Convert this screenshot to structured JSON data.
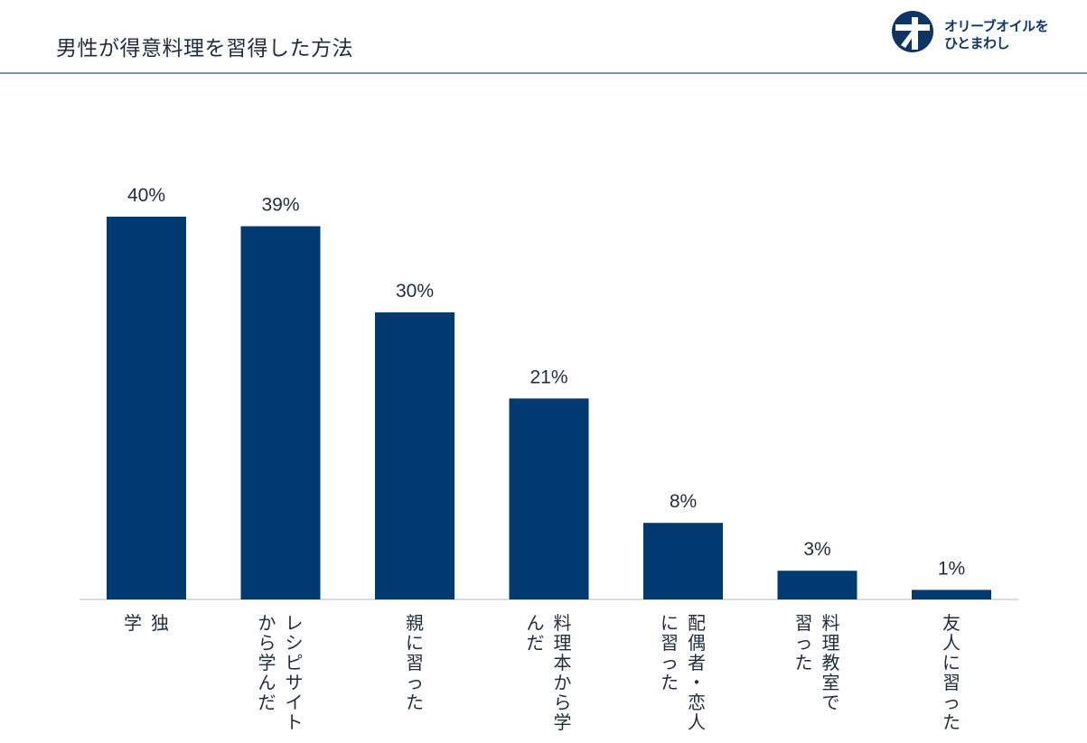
{
  "page": {
    "title": "男性が得意料理を習得した方法"
  },
  "logo": {
    "line1": "オリーブオイルを",
    "line2": "ひとまわし",
    "icon": "olive-oil-logo-icon",
    "color": "#0f3564"
  },
  "chart_data": {
    "type": "bar",
    "title": "",
    "xlabel": "",
    "ylabel": "",
    "ylim": [
      0,
      40
    ],
    "grid": false,
    "bar_color": "#003a70",
    "categories": [
      [
        "独",
        "学"
      ],
      [
        "レシピサイト",
        "から学んだ"
      ],
      [
        "親に習った"
      ],
      [
        "料理本から学",
        "んだ"
      ],
      [
        "配偶者・恋人",
        "に習った"
      ],
      [
        "料理教室で",
        "習った"
      ],
      [
        "友人に習った"
      ]
    ],
    "values": [
      40,
      39,
      30,
      21,
      8,
      3,
      1
    ],
    "data_labels": [
      "40%",
      "39%",
      "30%",
      "21%",
      "8%",
      "3%",
      "1%"
    ]
  }
}
